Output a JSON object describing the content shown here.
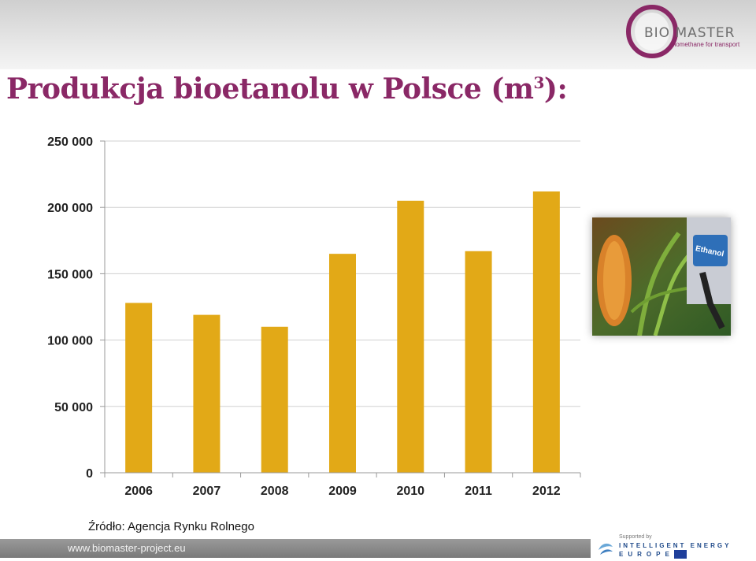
{
  "slide": {
    "title": "Produkcja bioetanolu w Polsce (m",
    "title_sup": "3",
    "title_end": "):",
    "source": "Źródło: Agencja Rynku Rolnego",
    "footer_url": "www.biomaster-project.eu"
  },
  "logo": {
    "brand": "BIO MASTER",
    "tagline": "biomethane for transport",
    "color": "#8a2866"
  },
  "sponsor": {
    "supported": "Supported by",
    "line1": "INTELLIGENT ENERGY",
    "line2": "EUROPE"
  },
  "photo": {
    "label": "Ethanol"
  },
  "chart_data": {
    "type": "bar",
    "categories": [
      "2006",
      "2007",
      "2008",
      "2009",
      "2010",
      "2011",
      "2012"
    ],
    "values": [
      128000,
      119000,
      110000,
      165000,
      205000,
      167000,
      212000
    ],
    "ylim": [
      0,
      250000
    ],
    "yticks": [
      0,
      50000,
      100000,
      150000,
      200000,
      250000
    ],
    "ytick_labels": [
      "0",
      "50 000",
      "100 000",
      "150 000",
      "200 000",
      "250 000"
    ],
    "bar_color": "#e2a917",
    "grid": true,
    "legend": false
  }
}
